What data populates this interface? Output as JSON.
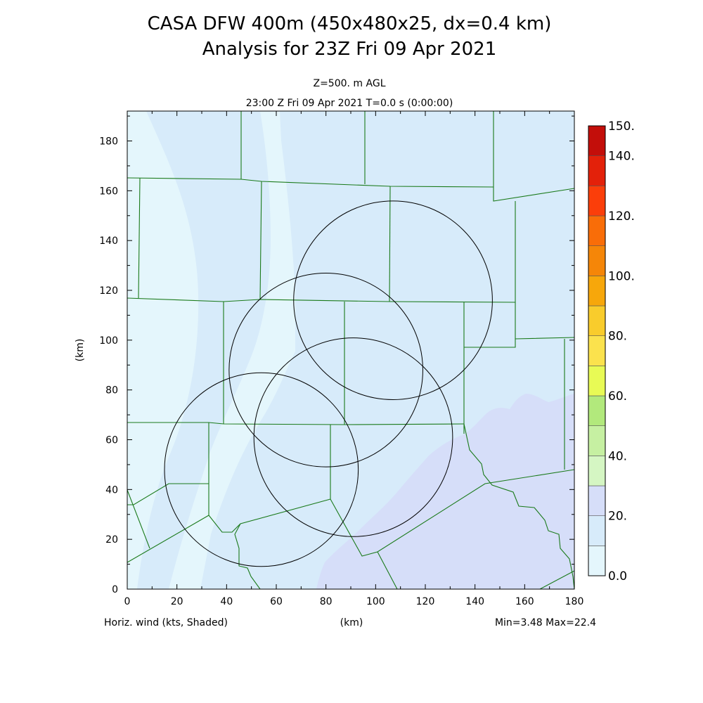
{
  "title_line1": "CASA DFW 400m (450x480x25, dx=0.4 km)",
  "title_line2": "Analysis for 23Z Fri 09 Apr 2021",
  "level_label": "Z=500. m AGL",
  "time_label": "23:00 Z Fri 09 Apr 2021   T=0.0 s (0:00:00)",
  "footer": {
    "left": "Horiz. wind (kts, Shaded)",
    "center": "(km)",
    "right": "Min=3.48 Max=22.4"
  },
  "chart_data": {
    "type": "heatmap",
    "title": "CASA DFW 400m (450x480x25, dx=0.4 km)",
    "subtitle": "Analysis for 23Z Fri 09 Apr 2021",
    "xlabel": "(km)",
    "ylabel": "(km)",
    "xlim": [
      0,
      180
    ],
    "ylim": [
      0,
      192
    ],
    "xticks": [
      0,
      20,
      40,
      60,
      80,
      100,
      120,
      140,
      160,
      180
    ],
    "yticks": [
      0,
      20,
      40,
      60,
      80,
      100,
      120,
      140,
      160,
      180
    ],
    "field": "Horiz. wind (kts, Shaded)",
    "min": 3.48,
    "max": 22.4,
    "colorbar": {
      "labels": [
        "0.0",
        "20.",
        "40.",
        "60.",
        "80.",
        "100.",
        "120.",
        "140.",
        "150."
      ],
      "levels": [
        0,
        10,
        20,
        30,
        40,
        50,
        60,
        70,
        80,
        90,
        100,
        110,
        120,
        130,
        140,
        150
      ],
      "colors": [
        "#e4f6fc",
        "#d7ebfa",
        "#d6def9",
        "#d5f6c3",
        "#c6f0a2",
        "#b2e97c",
        "#e8fa55",
        "#fbe24d",
        "#f9cc2c",
        "#f7a70b",
        "#f58608",
        "#f96d08",
        "#fb3e0a",
        "#e3210a",
        "#c30e0a"
      ]
    },
    "radar_rings": [
      {
        "center": [
          54,
          48
        ],
        "radius": 39
      },
      {
        "center": [
          80,
          88
        ],
        "radius": 39
      },
      {
        "center": [
          91,
          61
        ],
        "radius": 40
      },
      {
        "center": [
          107,
          116
        ],
        "radius": 40
      }
    ]
  }
}
